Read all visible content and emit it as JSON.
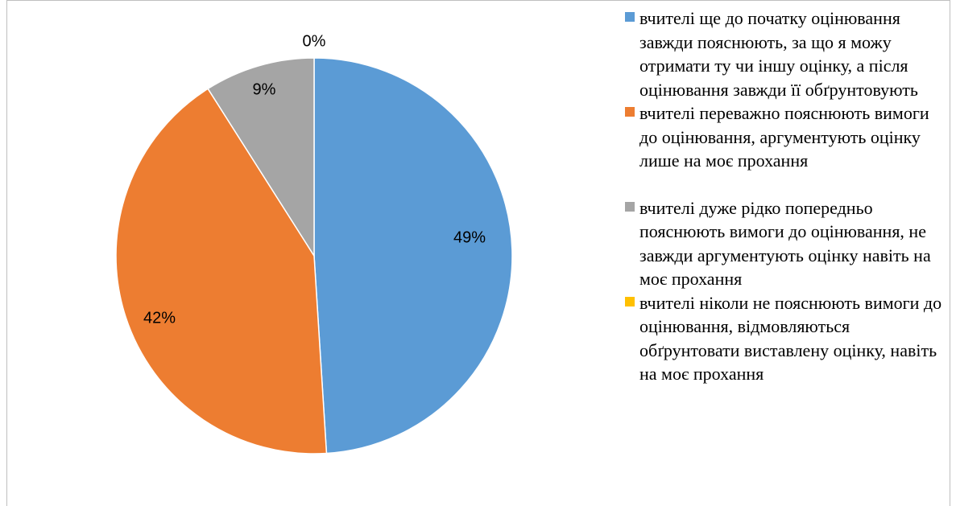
{
  "chart_data": {
    "type": "pie",
    "slices": [
      {
        "label": "вчителі ще до початку оцінювання завжди пояснюють, за що я можу отримати ту чи іншу оцінку, а після оцінювання завжди її обґрунтовують",
        "value": 49,
        "value_label": "49%",
        "color": "#5B9BD5"
      },
      {
        "label": "вчителі переважно пояснюють вимоги до оцінювання, аргументують оцінку лише на моє прохання",
        "value": 42,
        "value_label": "42%",
        "color": "#ED7D31"
      },
      {
        "label": "вчителі дуже рідко попередньо пояснюють вимоги до оцінювання, не завжди аргументують оцінку навіть на моє прохання",
        "value": 9,
        "value_label": "9%",
        "color": "#A5A5A5"
      },
      {
        "label": "вчителі ніколи не пояснюють вимоги до оцінювання, відмовляються обґрунтовати виставлену оцінку, навіть на моє прохання",
        "value": 0,
        "value_label": "0%",
        "color": "#FFC000"
      }
    ],
    "legend_position": "right"
  }
}
